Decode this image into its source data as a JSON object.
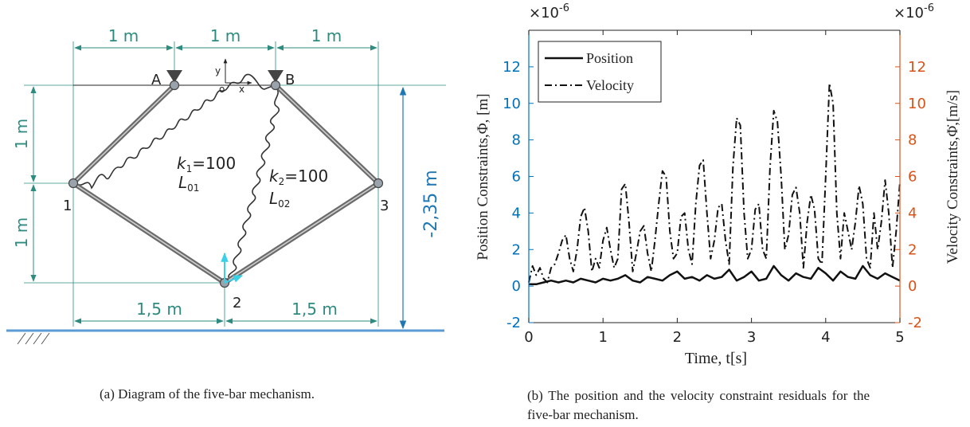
{
  "panel_a": {
    "caption": "(a) Diagram of the five-bar mechanism.",
    "top_dims": [
      "1 m",
      "1 m",
      "1 m"
    ],
    "left_dims": [
      "1 m",
      "1 m"
    ],
    "bottom_dims": [
      "1,5 m",
      "1,5 m"
    ],
    "height_dim": "-2,35 m",
    "points": {
      "A": "A",
      "B": "B",
      "p1": "1",
      "p2": "2",
      "p3": "3"
    },
    "origin": {
      "o": "o",
      "x": "x",
      "y": "y"
    },
    "spring1": {
      "k": "k",
      "k_sub": "1",
      "k_val": "=100",
      "L": "L",
      "L_sub": "01"
    },
    "spring2": {
      "k": "k",
      "k_sub": "2",
      "k_val": "=100",
      "L": "L",
      "L_sub": "02"
    },
    "colors": {
      "dimension": "#2e8b80",
      "height_dim": "#1f77b4",
      "ground": "#5b9bd5"
    }
  },
  "panel_b": {
    "caption": "(b) The position and the velocity constraint residuals for the five-bar mechanism.",
    "left_exponent_base": "×10",
    "left_exponent_power": "-6",
    "right_exponent_base": "×10",
    "right_exponent_power": "-6",
    "left_axis_color": "#0072BD",
    "right_axis_color": "#D95319",
    "chart_data": {
      "type": "line",
      "xlabel": "Time, t[s]",
      "ylabel_left": "Position Constraints,Φ, [m]",
      "ylabel_right": "Velocity Constraints,Φ̇,[m/s]",
      "xlim": [
        0,
        5
      ],
      "ylim": [
        -2,
        14
      ],
      "x_ticks": [
        "0",
        "1",
        "2",
        "3",
        "4",
        "5"
      ],
      "y_ticks_left": [
        "-2",
        "0",
        "2",
        "4",
        "6",
        "8",
        "10",
        "12"
      ],
      "y_ticks_right": [
        "-2",
        "0",
        "2",
        "4",
        "6",
        "8",
        "10",
        "12"
      ],
      "legend": {
        "placement": "top-left",
        "entries": [
          "Position",
          "Velocity"
        ]
      },
      "series": [
        {
          "name": "Position",
          "style": "solid",
          "x": [
            0,
            0.1,
            0.2,
            0.3,
            0.4,
            0.5,
            0.6,
            0.7,
            0.8,
            0.9,
            1.0,
            1.1,
            1.2,
            1.3,
            1.4,
            1.5,
            1.6,
            1.7,
            1.8,
            1.9,
            2.0,
            2.1,
            2.2,
            2.3,
            2.4,
            2.5,
            2.6,
            2.7,
            2.8,
            2.9,
            3.0,
            3.1,
            3.2,
            3.3,
            3.4,
            3.5,
            3.6,
            3.7,
            3.8,
            3.9,
            4.0,
            4.1,
            4.2,
            4.3,
            4.4,
            4.5,
            4.6,
            4.7,
            4.8,
            4.9,
            5.0
          ],
          "y": [
            0.1,
            0.1,
            0.2,
            0.3,
            0.2,
            0.3,
            0.2,
            0.4,
            0.3,
            0.2,
            0.4,
            0.3,
            0.4,
            0.6,
            0.3,
            0.2,
            0.5,
            0.4,
            0.3,
            0.6,
            0.8,
            0.4,
            0.5,
            0.3,
            0.6,
            0.4,
            0.5,
            0.9,
            0.3,
            0.5,
            0.8,
            0.3,
            0.4,
            1.1,
            0.6,
            0.3,
            0.7,
            0.5,
            0.4,
            1.0,
            0.7,
            0.3,
            0.8,
            0.5,
            0.4,
            1.1,
            0.6,
            0.4,
            0.7,
            0.5,
            0.3
          ]
        },
        {
          "name": "Velocity",
          "style": "dashed",
          "x": [
            0,
            0.05,
            0.1,
            0.15,
            0.2,
            0.25,
            0.3,
            0.35,
            0.4,
            0.45,
            0.5,
            0.55,
            0.6,
            0.65,
            0.7,
            0.75,
            0.8,
            0.85,
            0.9,
            0.95,
            1.0,
            1.05,
            1.1,
            1.15,
            1.2,
            1.25,
            1.3,
            1.35,
            1.4,
            1.45,
            1.5,
            1.55,
            1.6,
            1.65,
            1.7,
            1.75,
            1.8,
            1.85,
            1.9,
            1.95,
            2.0,
            2.05,
            2.1,
            2.15,
            2.2,
            2.25,
            2.3,
            2.35,
            2.4,
            2.45,
            2.5,
            2.55,
            2.6,
            2.65,
            2.7,
            2.75,
            2.8,
            2.85,
            2.9,
            2.95,
            3.0,
            3.05,
            3.1,
            3.15,
            3.2,
            3.25,
            3.3,
            3.35,
            3.4,
            3.45,
            3.5,
            3.55,
            3.6,
            3.65,
            3.7,
            3.75,
            3.8,
            3.85,
            3.9,
            3.95,
            4.0,
            4.05,
            4.1,
            4.15,
            4.2,
            4.25,
            4.3,
            4.35,
            4.4,
            4.45,
            4.5,
            4.55,
            4.6,
            4.65,
            4.7,
            4.75,
            4.8,
            4.85,
            4.9,
            4.95,
            5.0
          ],
          "y": [
            0.2,
            1.1,
            0.6,
            1.0,
            0.4,
            0.2,
            1.0,
            1.2,
            1.8,
            2.5,
            2.8,
            1.5,
            0.8,
            2.0,
            3.8,
            4.3,
            3.0,
            0.8,
            1.5,
            1.0,
            2.5,
            3.2,
            2.0,
            1.0,
            1.5,
            5.3,
            5.6,
            3.5,
            0.8,
            1.8,
            3.0,
            3.3,
            1.8,
            0.8,
            2.5,
            4.5,
            6.3,
            6.0,
            3.0,
            1.5,
            1.8,
            3.8,
            4.0,
            2.0,
            1.2,
            4.5,
            6.6,
            6.9,
            4.0,
            1.5,
            2.5,
            4.3,
            4.5,
            2.5,
            1.2,
            6.5,
            9.2,
            8.8,
            4.0,
            1.5,
            2.0,
            4.2,
            4.5,
            2.0,
            1.5,
            6.5,
            9.6,
            9.0,
            6.0,
            2.0,
            2.8,
            5.0,
            5.4,
            4.0,
            1.0,
            3.5,
            5.0,
            4.2,
            1.5,
            1.2,
            6.0,
            11.1,
            10.0,
            4.0,
            1.5,
            4.0,
            3.0,
            2.0,
            3.5,
            5.5,
            4.5,
            1.5,
            1.0,
            4.0,
            2.0,
            3.5,
            5.8,
            4.0,
            1.0,
            3.0,
            5.7
          ]
        }
      ]
    }
  }
}
